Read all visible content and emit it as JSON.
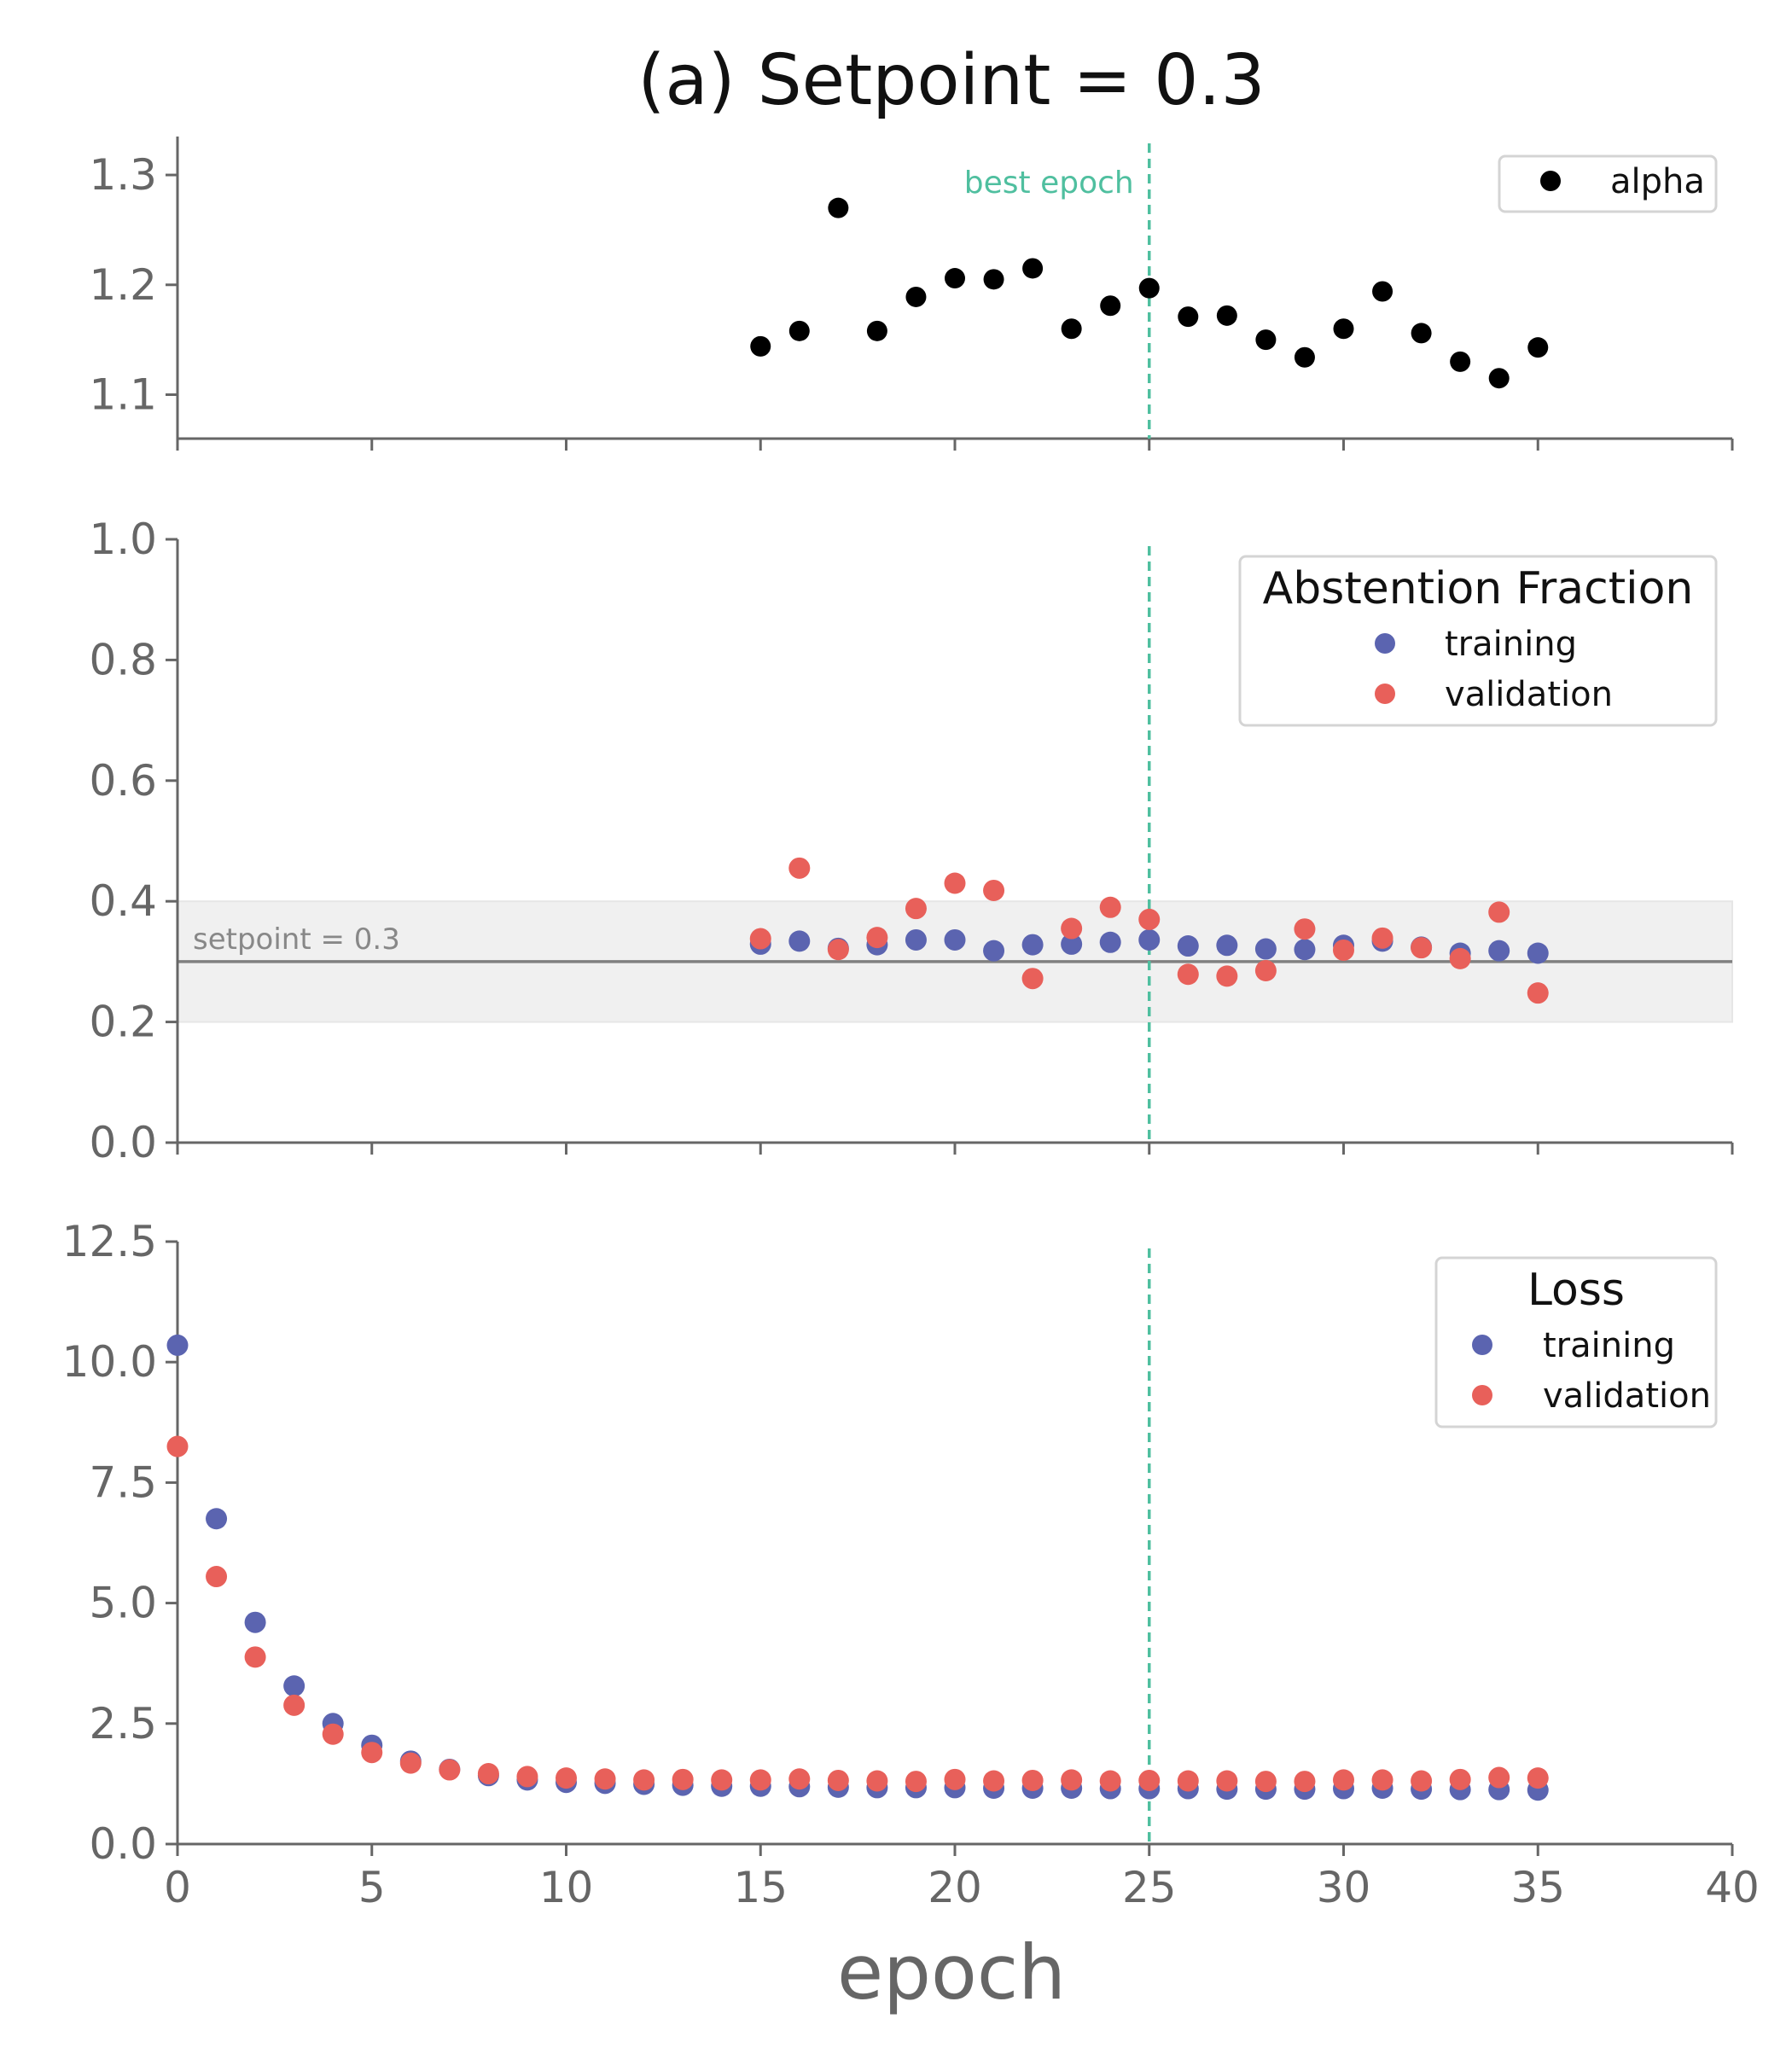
{
  "figure": {
    "title": "(a) Setpoint = 0.3",
    "xlabel": "epoch",
    "xlim": [
      0,
      40
    ],
    "xticks": [
      "0",
      "5",
      "10",
      "15",
      "20",
      "25",
      "30",
      "35",
      "40"
    ],
    "best_epoch": 25,
    "best_epoch_label": "best epoch",
    "colors": {
      "training": "#5b64b0",
      "validation": "#e8605a",
      "alpha": "#000000",
      "best_epoch": "#4fbf9f",
      "axis": "#666666",
      "setpoint_line": "#808080",
      "setpoint_band": "#f0f0f0"
    }
  },
  "chart_data": [
    {
      "type": "scatter",
      "panel": "alpha",
      "ylim": [
        1.06,
        1.335
      ],
      "yticks": [
        "1.1",
        "1.2",
        "1.3"
      ],
      "legend_position": "top-right",
      "grid": false,
      "series": [
        {
          "name": "alpha",
          "x": [
            15,
            16,
            17,
            18,
            19,
            20,
            21,
            22,
            23,
            24,
            25,
            26,
            27,
            28,
            29,
            30,
            31,
            32,
            33,
            34,
            35
          ],
          "values": [
            1.144,
            1.158,
            1.27,
            1.158,
            1.189,
            1.206,
            1.205,
            1.215,
            1.16,
            1.181,
            1.197,
            1.171,
            1.172,
            1.15,
            1.134,
            1.16,
            1.194,
            1.156,
            1.13,
            1.115,
            1.143
          ]
        }
      ]
    },
    {
      "type": "scatter",
      "panel": "abstention",
      "legend_title": "Abstention Fraction",
      "ylim": [
        0,
        1.0
      ],
      "yticks": [
        "0.0",
        "0.2",
        "0.4",
        "0.6",
        "0.8",
        "1.0"
      ],
      "legend_position": "top-right",
      "grid": false,
      "setpoint": 0.3,
      "setpoint_label": "setpoint = 0.3",
      "band": [
        0.2,
        0.4
      ],
      "series": [
        {
          "name": "training",
          "x": [
            15,
            16,
            17,
            18,
            19,
            20,
            21,
            22,
            23,
            24,
            25,
            26,
            27,
            28,
            29,
            30,
            31,
            32,
            33,
            34,
            35
          ],
          "values": [
            0.329,
            0.334,
            0.322,
            0.328,
            0.336,
            0.336,
            0.318,
            0.328,
            0.329,
            0.332,
            0.336,
            0.326,
            0.327,
            0.321,
            0.32,
            0.327,
            0.334,
            0.324,
            0.314,
            0.318,
            0.314
          ]
        },
        {
          "name": "validation",
          "x": [
            15,
            16,
            17,
            18,
            19,
            20,
            21,
            22,
            23,
            24,
            25,
            26,
            27,
            28,
            29,
            30,
            31,
            32,
            33,
            34,
            35
          ],
          "values": [
            0.338,
            0.455,
            0.32,
            0.34,
            0.388,
            0.43,
            0.418,
            0.272,
            0.355,
            0.39,
            0.37,
            0.279,
            0.276,
            0.285,
            0.354,
            0.319,
            0.339,
            0.323,
            0.305,
            0.382,
            0.248
          ]
        }
      ]
    },
    {
      "type": "scatter",
      "panel": "loss",
      "legend_title": "Loss",
      "ylim": [
        0,
        12.5
      ],
      "yticks": [
        "0.0",
        "2.5",
        "5.0",
        "7.5",
        "10.0",
        "12.5"
      ],
      "legend_position": "top-right",
      "grid": false,
      "series": [
        {
          "name": "training",
          "x": [
            0,
            1,
            2,
            3,
            4,
            5,
            6,
            7,
            8,
            9,
            10,
            11,
            12,
            13,
            14,
            15,
            16,
            17,
            18,
            19,
            20,
            21,
            22,
            23,
            24,
            25,
            26,
            27,
            28,
            29,
            30,
            31,
            32,
            33,
            34,
            35
          ],
          "values": [
            10.35,
            6.75,
            4.6,
            3.28,
            2.5,
            2.05,
            1.72,
            1.55,
            1.42,
            1.33,
            1.28,
            1.26,
            1.24,
            1.22,
            1.2,
            1.2,
            1.19,
            1.18,
            1.17,
            1.17,
            1.17,
            1.16,
            1.16,
            1.16,
            1.15,
            1.15,
            1.15,
            1.14,
            1.14,
            1.14,
            1.15,
            1.16,
            1.14,
            1.13,
            1.13,
            1.12
          ]
        },
        {
          "name": "validation",
          "x": [
            0,
            1,
            2,
            3,
            4,
            5,
            6,
            7,
            8,
            9,
            10,
            11,
            12,
            13,
            14,
            15,
            16,
            17,
            18,
            19,
            20,
            21,
            22,
            23,
            24,
            25,
            26,
            27,
            28,
            29,
            30,
            31,
            32,
            33,
            34,
            35
          ],
          "values": [
            8.25,
            5.55,
            3.88,
            2.88,
            2.28,
            1.9,
            1.68,
            1.54,
            1.46,
            1.4,
            1.37,
            1.35,
            1.33,
            1.34,
            1.33,
            1.33,
            1.35,
            1.32,
            1.31,
            1.3,
            1.34,
            1.31,
            1.32,
            1.33,
            1.31,
            1.32,
            1.31,
            1.31,
            1.3,
            1.3,
            1.33,
            1.33,
            1.31,
            1.34,
            1.38,
            1.37
          ]
        }
      ]
    }
  ]
}
